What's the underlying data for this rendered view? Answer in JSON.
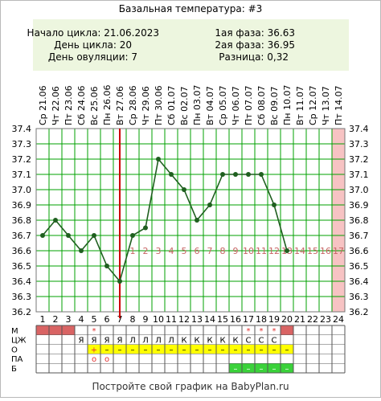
{
  "title": "Базальная температура: #3",
  "summary": {
    "cycle_start": "Начало цикла: 21.06.2023",
    "cycle_day": "День цикла: 20",
    "ovulation_day": "День овуляции: 7",
    "phase1": "1ая фаза: 36.63",
    "phase2": "2ая фаза: 36.95",
    "difference": "Разница: 0,32"
  },
  "footer": "Постройте свой график на BabyPlan.ru",
  "colors": {
    "line": "#1f5f1f",
    "ovulation_line": "#cc0000",
    "phase_numbers": "#c86464",
    "highlight_column": "#f7c3c3",
    "summary_bg": "#edf6df",
    "yellow": "#ffff00",
    "green": "#3ad23a",
    "period": "#d96464"
  },
  "chart_data": {
    "type": "line",
    "title": "Базальная температура: #3",
    "x": [
      1,
      2,
      3,
      4,
      5,
      6,
      7,
      8,
      9,
      10,
      11,
      12,
      13,
      14,
      15,
      16,
      17,
      18,
      19,
      20,
      21,
      22,
      23,
      24
    ],
    "weekdays": [
      "Ср",
      "Чт",
      "Пт",
      "Сб",
      "Вс",
      "Пн",
      "Вт",
      "Ср",
      "Чт",
      "Пт",
      "Сб",
      "Вс",
      "Пн",
      "Вт",
      "Ср",
      "Чт",
      "Пт",
      "Сб",
      "Вс",
      "Пн",
      "Вт",
      "Ср",
      "Чт",
      "Пт"
    ],
    "dates": [
      "21.06",
      "22.06",
      "23.06",
      "24.06",
      "25.06",
      "26.06",
      "27.06",
      "28.06",
      "29.06",
      "30.06",
      "01.07",
      "02.07",
      "03.07",
      "04.07",
      "05.07",
      "06.07",
      "07.07",
      "08.07",
      "09.07",
      "10.07",
      "11.07",
      "12.07",
      "13.07",
      "14.07"
    ],
    "series": [
      {
        "values": [
          36.7,
          36.8,
          36.7,
          36.6,
          36.7,
          36.5,
          36.4,
          36.7,
          36.75,
          37.2,
          37.1,
          37.0,
          36.8,
          36.9,
          37.1,
          37.1,
          37.1,
          37.1,
          36.9,
          36.6,
          null,
          null,
          null,
          null
        ]
      }
    ],
    "ylim": [
      36.2,
      37.4
    ],
    "yticks": [
      "36.2",
      "36.3",
      "36.4",
      "36.5",
      "36.6",
      "36.7",
      "36.8",
      "36.9",
      "37.0",
      "37.1",
      "37.2",
      "37.3",
      "37.4"
    ],
    "grid": true,
    "ovulation_day": 7,
    "highlight_day": 24,
    "phase_day_labels": [
      "1",
      "2",
      "3",
      "4",
      "5",
      "6",
      "7",
      "8",
      "9",
      "10",
      "11",
      "12",
      "13",
      "14",
      "15",
      "16",
      "17"
    ],
    "phase_labels_start_day": 8
  },
  "table": {
    "rows": [
      {
        "label": "М",
        "cells": [
          [
            "period",
            ""
          ],
          [
            "period",
            ""
          ],
          [
            "period",
            ""
          ],
          [
            "",
            ""
          ],
          [
            "star",
            "*"
          ],
          [
            "",
            ""
          ],
          [
            "",
            ""
          ],
          [
            "",
            ""
          ],
          [
            "",
            ""
          ],
          [
            "",
            ""
          ],
          [
            "",
            ""
          ],
          [
            "",
            ""
          ],
          [
            "",
            ""
          ],
          [
            "",
            ""
          ],
          [
            "",
            ""
          ],
          [
            "",
            ""
          ],
          [
            "star",
            "*"
          ],
          [
            "star",
            "*"
          ],
          [
            "star",
            "*"
          ],
          [
            "period",
            ""
          ],
          [
            "",
            ""
          ],
          [
            "",
            ""
          ],
          [
            "",
            ""
          ],
          [
            "",
            ""
          ]
        ]
      },
      {
        "label": "ЦЖ",
        "cells": [
          [
            "",
            ""
          ],
          [
            "",
            ""
          ],
          [
            "",
            ""
          ],
          [
            "",
            "Я"
          ],
          [
            "",
            "Я"
          ],
          [
            "",
            "Я"
          ],
          [
            "",
            "Я"
          ],
          [
            "",
            "Л"
          ],
          [
            "",
            "Л"
          ],
          [
            "",
            "Л"
          ],
          [
            "",
            "Л"
          ],
          [
            "",
            "К"
          ],
          [
            "",
            "К"
          ],
          [
            "",
            "К"
          ],
          [
            "",
            "К"
          ],
          [
            "",
            "К"
          ],
          [
            "",
            "С"
          ],
          [
            "",
            "С"
          ],
          [
            "",
            "С"
          ],
          [
            "",
            ""
          ],
          [
            "",
            ""
          ],
          [
            "",
            ""
          ],
          [
            "",
            ""
          ],
          [
            "",
            ""
          ]
        ]
      },
      {
        "label": "О",
        "cells": [
          [
            "",
            ""
          ],
          [
            "",
            ""
          ],
          [
            "",
            ""
          ],
          [
            "",
            ""
          ],
          [
            "yellow",
            "+"
          ],
          [
            "yellow",
            "–"
          ],
          [
            "yellow",
            "–"
          ],
          [
            "yellow",
            "–"
          ],
          [
            "yellow",
            "–"
          ],
          [
            "yellow",
            "–"
          ],
          [
            "yellow",
            "–"
          ],
          [
            "yellow",
            "–"
          ],
          [
            "yellow",
            "–"
          ],
          [
            "yellow",
            "–"
          ],
          [
            "yellow",
            "–"
          ],
          [
            "yellow",
            "–"
          ],
          [
            "yellow",
            "–"
          ],
          [
            "yellow",
            "–"
          ],
          [
            "yellow",
            "–"
          ],
          [
            "yellow",
            "–"
          ],
          [
            "",
            ""
          ],
          [
            "",
            ""
          ],
          [
            "",
            ""
          ],
          [
            "",
            ""
          ]
        ]
      },
      {
        "label": "ПА",
        "cells": [
          [
            "",
            ""
          ],
          [
            "",
            ""
          ],
          [
            "",
            ""
          ],
          [
            "",
            ""
          ],
          [
            "circle",
            "o"
          ],
          [
            "circle",
            "o"
          ],
          [
            "",
            ""
          ],
          [
            "",
            ""
          ],
          [
            "",
            ""
          ],
          [
            "",
            ""
          ],
          [
            "",
            ""
          ],
          [
            "",
            ""
          ],
          [
            "",
            ""
          ],
          [
            "",
            ""
          ],
          [
            "",
            ""
          ],
          [
            "",
            ""
          ],
          [
            "",
            ""
          ],
          [
            "",
            ""
          ],
          [
            "",
            ""
          ],
          [
            "",
            ""
          ],
          [
            "",
            ""
          ],
          [
            "",
            ""
          ],
          [
            "",
            ""
          ],
          [
            "",
            ""
          ]
        ]
      },
      {
        "label": "Б",
        "cells": [
          [
            "",
            ""
          ],
          [
            "",
            ""
          ],
          [
            "",
            ""
          ],
          [
            "",
            ""
          ],
          [
            "",
            ""
          ],
          [
            "",
            ""
          ],
          [
            "",
            ""
          ],
          [
            "",
            ""
          ],
          [
            "",
            ""
          ],
          [
            "",
            ""
          ],
          [
            "",
            ""
          ],
          [
            "",
            ""
          ],
          [
            "",
            ""
          ],
          [
            "",
            ""
          ],
          [
            "",
            ""
          ],
          [
            "green",
            "–"
          ],
          [
            "green",
            "–"
          ],
          [
            "green",
            "–"
          ],
          [
            "green",
            "–"
          ],
          [
            "green",
            "–"
          ],
          [
            "",
            ""
          ],
          [
            "",
            ""
          ],
          [
            "",
            ""
          ],
          [
            "",
            ""
          ]
        ]
      }
    ]
  }
}
